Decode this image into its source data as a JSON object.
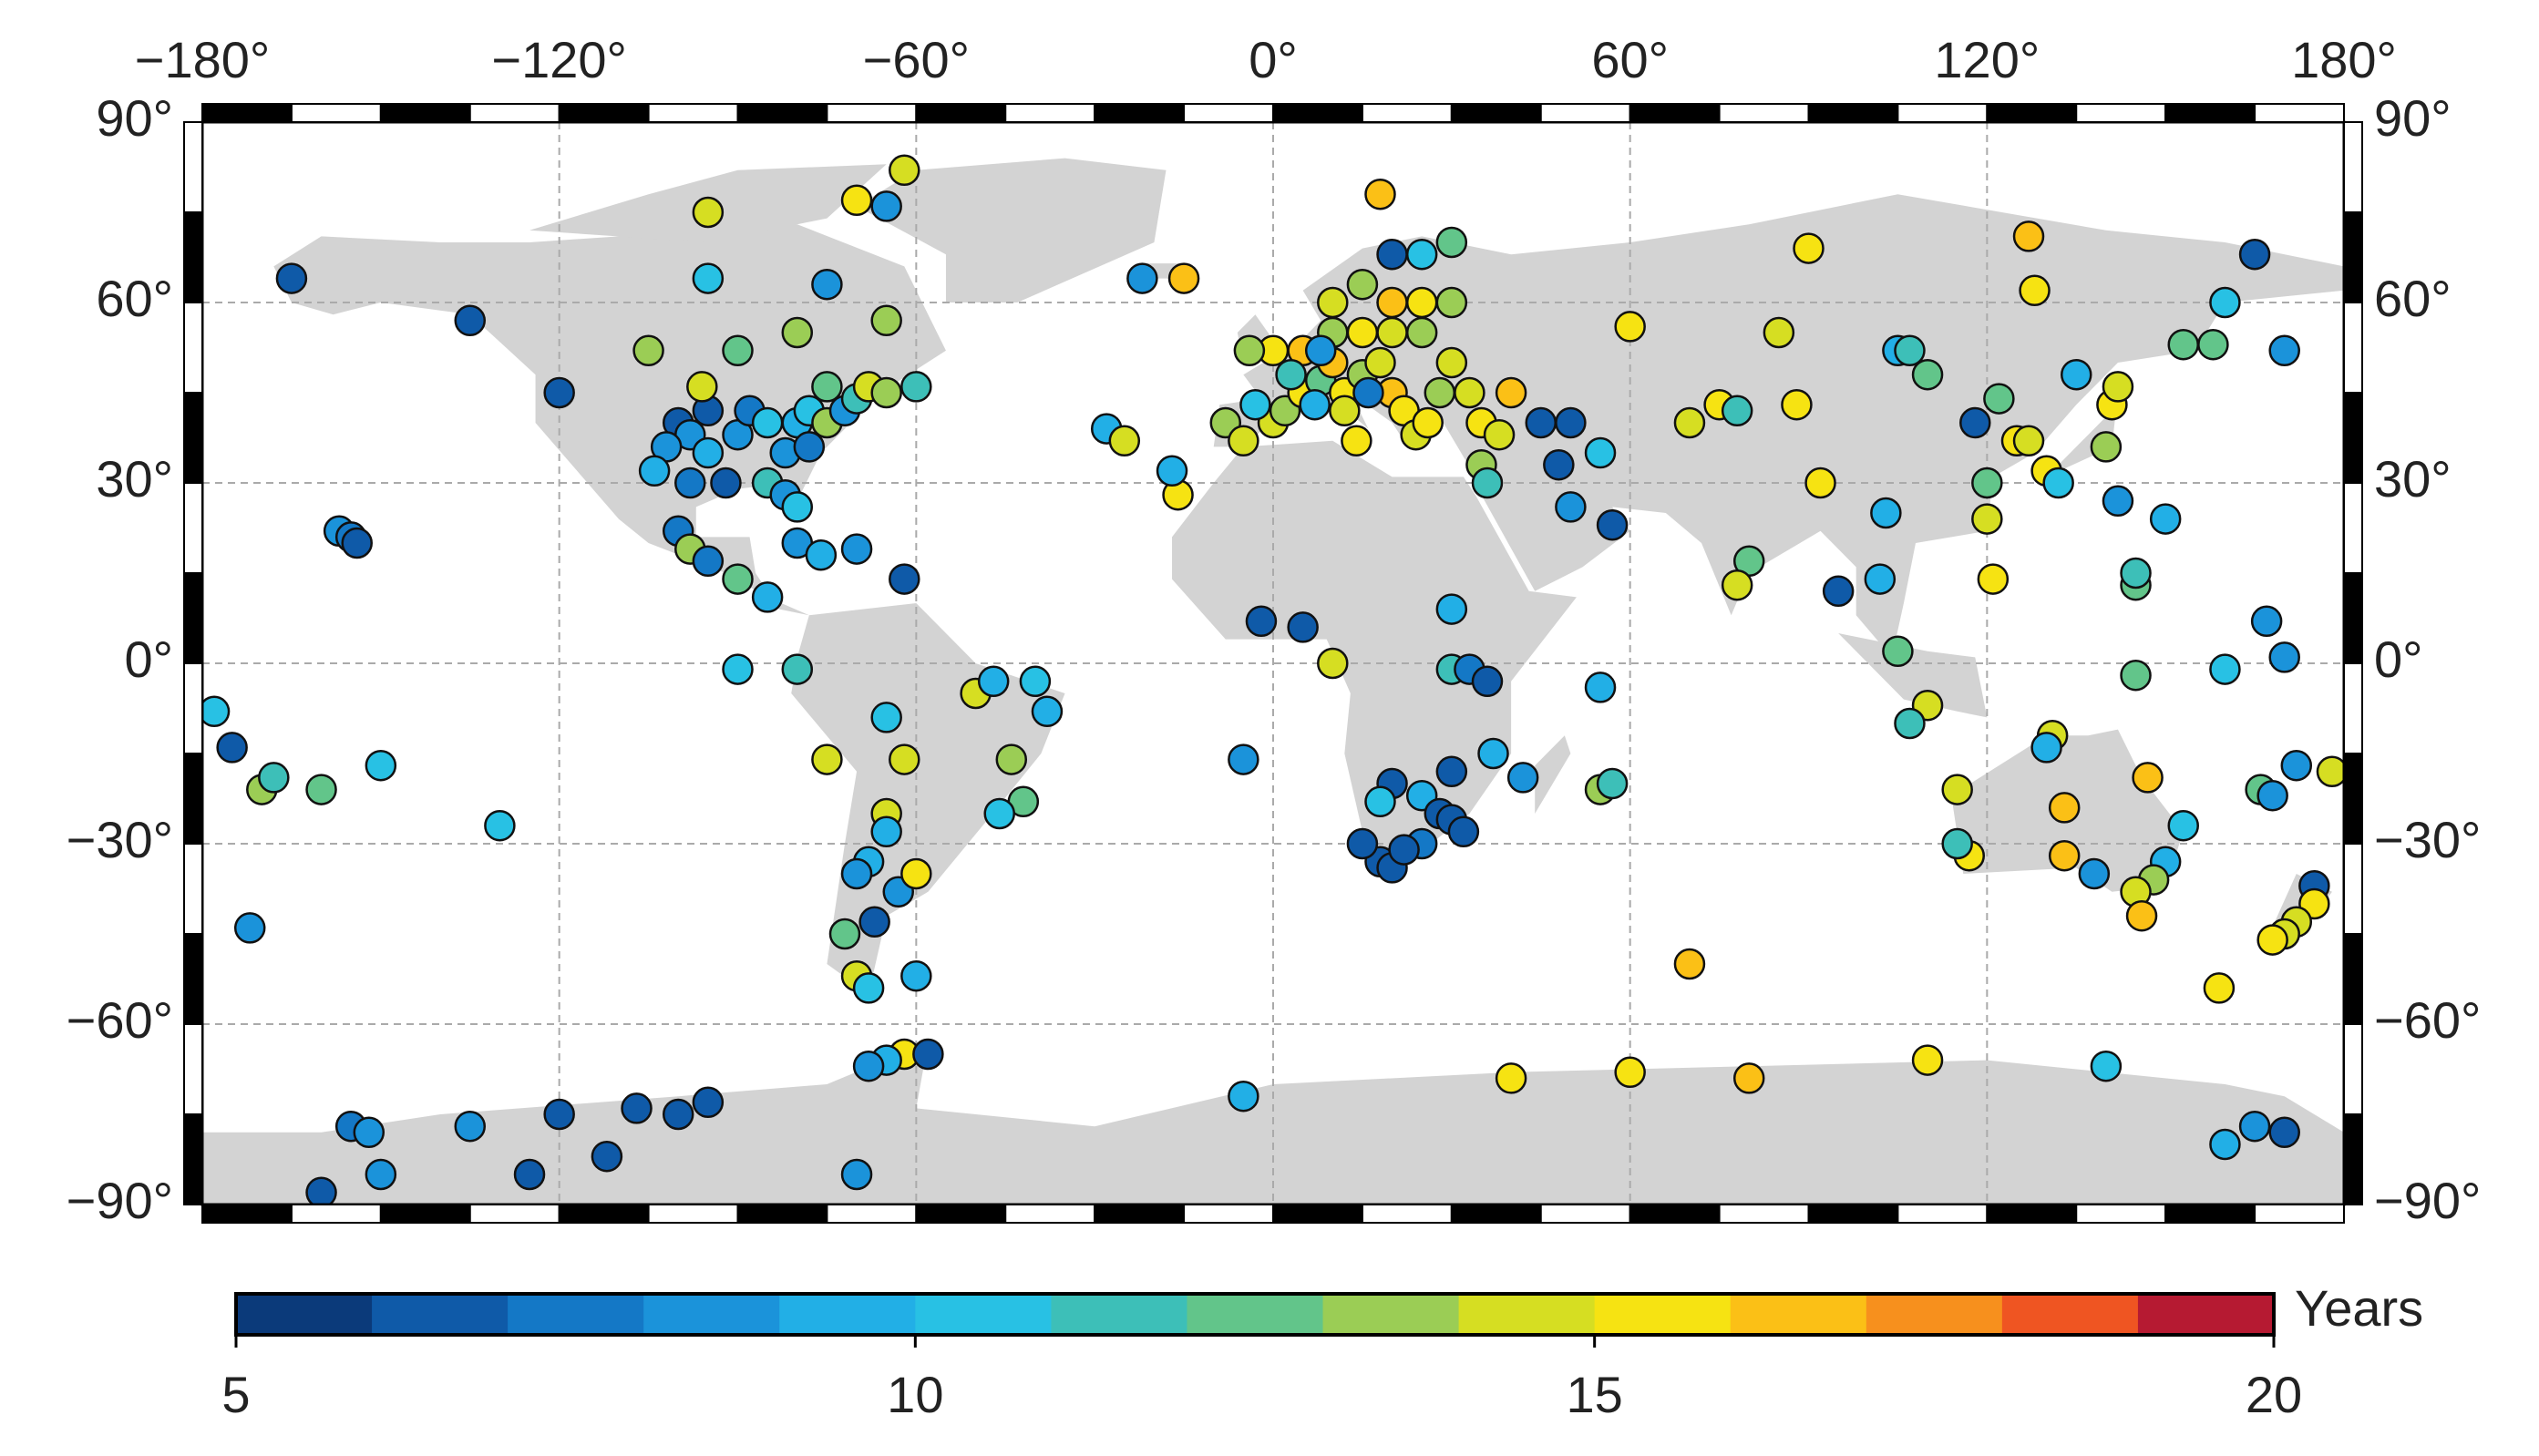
{
  "chart_data": {
    "type": "scatter",
    "xlim": [
      -180,
      180
    ],
    "ylim": [
      -90,
      90
    ],
    "xticks": [
      {
        "value": -180,
        "label": "−180°"
      },
      {
        "value": -120,
        "label": "−120°"
      },
      {
        "value": -60,
        "label": "−60°"
      },
      {
        "value": 0,
        "label": "0°"
      },
      {
        "value": 60,
        "label": "60°"
      },
      {
        "value": 120,
        "label": "120°"
      },
      {
        "value": 180,
        "label": "180°"
      }
    ],
    "yticks": [
      {
        "value": -90,
        "label": "−90°"
      },
      {
        "value": -60,
        "label": "−60°"
      },
      {
        "value": -30,
        "label": "−30°"
      },
      {
        "value": 0,
        "label": "0°"
      },
      {
        "value": 30,
        "label": "30°"
      },
      {
        "value": 60,
        "label": "60°"
      },
      {
        "value": 90,
        "label": "90°"
      }
    ],
    "grid": true,
    "land_color": "#d3d3d3",
    "x": [
      -165,
      -135,
      -120,
      -157,
      -155,
      -154,
      -105,
      -95,
      -95,
      -90,
      -80,
      -75,
      -65,
      -62,
      -70,
      -65,
      -100,
      -98,
      -95,
      -90,
      -88,
      -85,
      -82,
      -80,
      -78,
      -75,
      -72,
      -70,
      -68,
      -95,
      -102,
      -98,
      -92,
      -85,
      -82,
      -80,
      -100,
      -96,
      -78,
      -75,
      -65,
      -60,
      -104,
      -98,
      -95,
      -90,
      -85,
      -80,
      -76,
      -70,
      -62,
      -90,
      -80,
      -65,
      -75,
      -62,
      -50,
      -47,
      -40,
      -38,
      -44,
      -42,
      -46,
      -65,
      -65,
      -68,
      -70,
      -63,
      -60,
      -67,
      -72,
      -70,
      -68,
      -60,
      -62,
      -65,
      -58,
      -68,
      -70,
      -125,
      -100,
      -107,
      -120,
      -135,
      -155,
      -152,
      -150,
      -160,
      -95,
      -112,
      -5,
      40,
      60,
      80,
      110,
      140,
      160,
      165,
      170,
      -178,
      -175,
      -170,
      -168,
      -160,
      -150,
      -130,
      -172,
      -28,
      -25,
      -16,
      -15,
      -22,
      -17,
      -5,
      0,
      2,
      5,
      8,
      10,
      12,
      15,
      18,
      20,
      22,
      24,
      26,
      28,
      30,
      25,
      20,
      15,
      10,
      5,
      0,
      -4,
      -8,
      -5,
      -3,
      3,
      7,
      12,
      14,
      20,
      25,
      30,
      10,
      15,
      20,
      25,
      30,
      18,
      8,
      16,
      35,
      38,
      35,
      36,
      33,
      40,
      45,
      50,
      55,
      48,
      50,
      57,
      -2,
      5,
      10,
      30,
      30,
      33,
      36,
      42,
      55,
      57,
      55,
      37,
      30,
      25,
      20,
      28,
      30,
      32,
      25,
      18,
      20,
      22,
      15,
      18,
      60,
      70,
      75,
      78,
      80,
      78,
      88,
      85,
      90,
      92,
      95,
      102,
      105,
      107,
      110,
      103,
      105,
      110,
      107,
      118,
      122,
      125,
      127,
      130,
      132,
      120,
      120,
      121,
      128,
      127,
      135,
      141,
      142,
      140,
      142,
      145,
      145,
      150,
      145,
      153,
      158,
      160,
      165,
      170,
      167,
      170,
      160,
      117,
      115,
      115,
      131,
      130,
      133,
      147,
      150,
      148,
      145,
      146,
      153,
      138,
      133,
      166,
      168,
      178,
      172,
      175,
      175,
      172,
      170,
      168,
      159,
      70
    ],
    "y": [
      64,
      57,
      45,
      22,
      21,
      20,
      52,
      75,
      64,
      52,
      55,
      63,
      57,
      82,
      77,
      76,
      40,
      38,
      35,
      38,
      42,
      40,
      35,
      40,
      42,
      40,
      42,
      44,
      46,
      42,
      36,
      30,
      30,
      30,
      28,
      26,
      22,
      46,
      36,
      46,
      45,
      46,
      32,
      19,
      17,
      14,
      11,
      20,
      18,
      19,
      14,
      -1,
      -1,
      -9,
      -16,
      -16,
      -5,
      -3,
      -3,
      -8,
      -16,
      -23,
      -25,
      -25,
      -28,
      -33,
      -35,
      -38,
      -35,
      -43,
      -45,
      -52,
      -54,
      -52,
      -65,
      -66,
      -65,
      -67,
      -85,
      -85,
      -75,
      -74,
      -75,
      -77,
      -77,
      -78,
      -85,
      -88,
      -73,
      -82,
      -72,
      -69,
      -68,
      -69,
      -66,
      -67,
      -80,
      -77,
      -78,
      -8,
      -14,
      -21,
      -19,
      -21,
      -17,
      -27,
      -44,
      39,
      37,
      28,
      64,
      64,
      32,
      -16,
      40,
      42,
      45,
      47,
      50,
      45,
      48,
      50,
      45,
      42,
      38,
      40,
      45,
      50,
      55,
      55,
      55,
      55,
      52,
      52,
      52,
      40,
      37,
      43,
      48,
      43,
      42,
      37,
      60,
      60,
      60,
      60,
      63,
      68,
      68,
      70,
      78,
      52,
      45,
      40,
      38,
      33,
      30,
      45,
      45,
      40,
      40,
      35,
      33,
      26,
      23,
      7,
      6,
      0,
      9,
      -1,
      -1,
      -3,
      -19,
      -21,
      -20,
      -4,
      -15,
      -18,
      -22,
      -20,
      -25,
      -26,
      -28,
      -30,
      -33,
      -34,
      -31,
      -30,
      -23,
      56,
      40,
      43,
      42,
      17,
      13,
      43,
      55,
      69,
      30,
      12,
      14,
      52,
      52,
      48,
      25,
      2,
      -7,
      -10,
      40,
      44,
      37,
      37,
      32,
      30,
      30,
      24,
      14,
      62,
      71,
      48,
      43,
      46,
      36,
      27,
      13,
      15,
      24,
      -2,
      53,
      53,
      60,
      68,
      52,
      7,
      1,
      -1,
      -32,
      -30,
      -21,
      -12,
      -14,
      -24,
      -19,
      -33,
      -36,
      -38,
      -42,
      -27,
      -35,
      -32,
      -21,
      -22,
      -18,
      -17,
      -37,
      -40,
      -43,
      -45,
      -46,
      -54,
      -50
    ],
    "values": [
      6,
      6,
      6,
      8,
      7,
      6,
      13,
      14,
      10,
      12,
      13,
      8,
      13,
      14,
      15,
      8,
      6,
      8,
      9,
      8,
      7,
      10,
      8,
      9,
      10,
      13,
      8,
      11,
      14,
      6,
      8,
      7,
      6,
      11,
      8,
      10,
      7,
      14,
      7,
      12,
      13,
      11,
      9,
      13,
      7,
      12,
      9,
      8,
      9,
      8,
      6,
      10,
      11,
      10,
      14,
      14,
      14,
      9,
      10,
      9,
      13,
      12,
      10,
      14,
      9,
      9,
      8,
      8,
      15,
      6,
      12,
      14,
      10,
      9,
      15,
      9,
      6,
      8,
      8,
      6,
      6,
      6,
      6,
      8,
      7,
      8,
      8,
      6,
      6,
      6,
      9,
      15,
      15,
      16,
      15,
      10,
      9,
      8,
      6,
      10,
      6,
      13,
      11,
      12,
      10,
      10,
      8,
      9,
      14,
      15,
      16,
      8,
      9,
      8,
      14,
      13,
      15,
      12,
      16,
      15,
      13,
      14,
      16,
      15,
      14,
      15,
      13,
      14,
      13,
      14,
      15,
      13,
      16,
      15,
      13,
      13,
      14,
      10,
      11,
      9,
      14,
      15,
      16,
      15,
      13,
      14,
      13,
      6,
      10,
      12,
      16,
      8,
      7,
      15,
      14,
      13,
      11,
      14,
      16,
      6,
      6,
      10,
      6,
      8,
      6,
      6,
      6,
      14,
      9,
      11,
      7,
      6,
      8,
      13,
      11,
      9,
      9,
      6,
      9,
      6,
      6,
      6,
      6,
      7,
      6,
      6,
      6,
      6,
      10,
      15,
      14,
      15,
      11,
      12,
      14,
      15,
      14,
      15,
      15,
      6,
      9,
      9,
      11,
      12,
      9,
      12,
      14,
      11,
      6,
      12,
      15,
      14,
      15,
      10,
      12,
      14,
      15,
      15,
      16,
      9,
      15,
      14,
      13,
      8,
      12,
      11,
      9,
      12,
      12,
      12,
      10,
      6,
      8,
      8,
      8,
      10,
      15,
      11,
      14,
      14,
      9,
      16,
      16,
      9,
      13,
      14,
      16,
      10,
      8,
      16,
      12,
      8,
      14,
      8,
      6,
      15,
      14,
      14,
      15,
      15,
      16
    ],
    "colorbar": {
      "label": "Years",
      "lim": [
        5,
        20
      ],
      "ticks": [
        5,
        10,
        15,
        20
      ],
      "colors": [
        "#0b3a7a",
        "#0f5aa8",
        "#1478c6",
        "#1b93da",
        "#22afe6",
        "#28c1e4",
        "#3dbfb8",
        "#62c58a",
        "#9bcd55",
        "#d6de22",
        "#f6e312",
        "#fbc016",
        "#f7901d",
        "#ef5522",
        "#b61a32"
      ]
    }
  }
}
